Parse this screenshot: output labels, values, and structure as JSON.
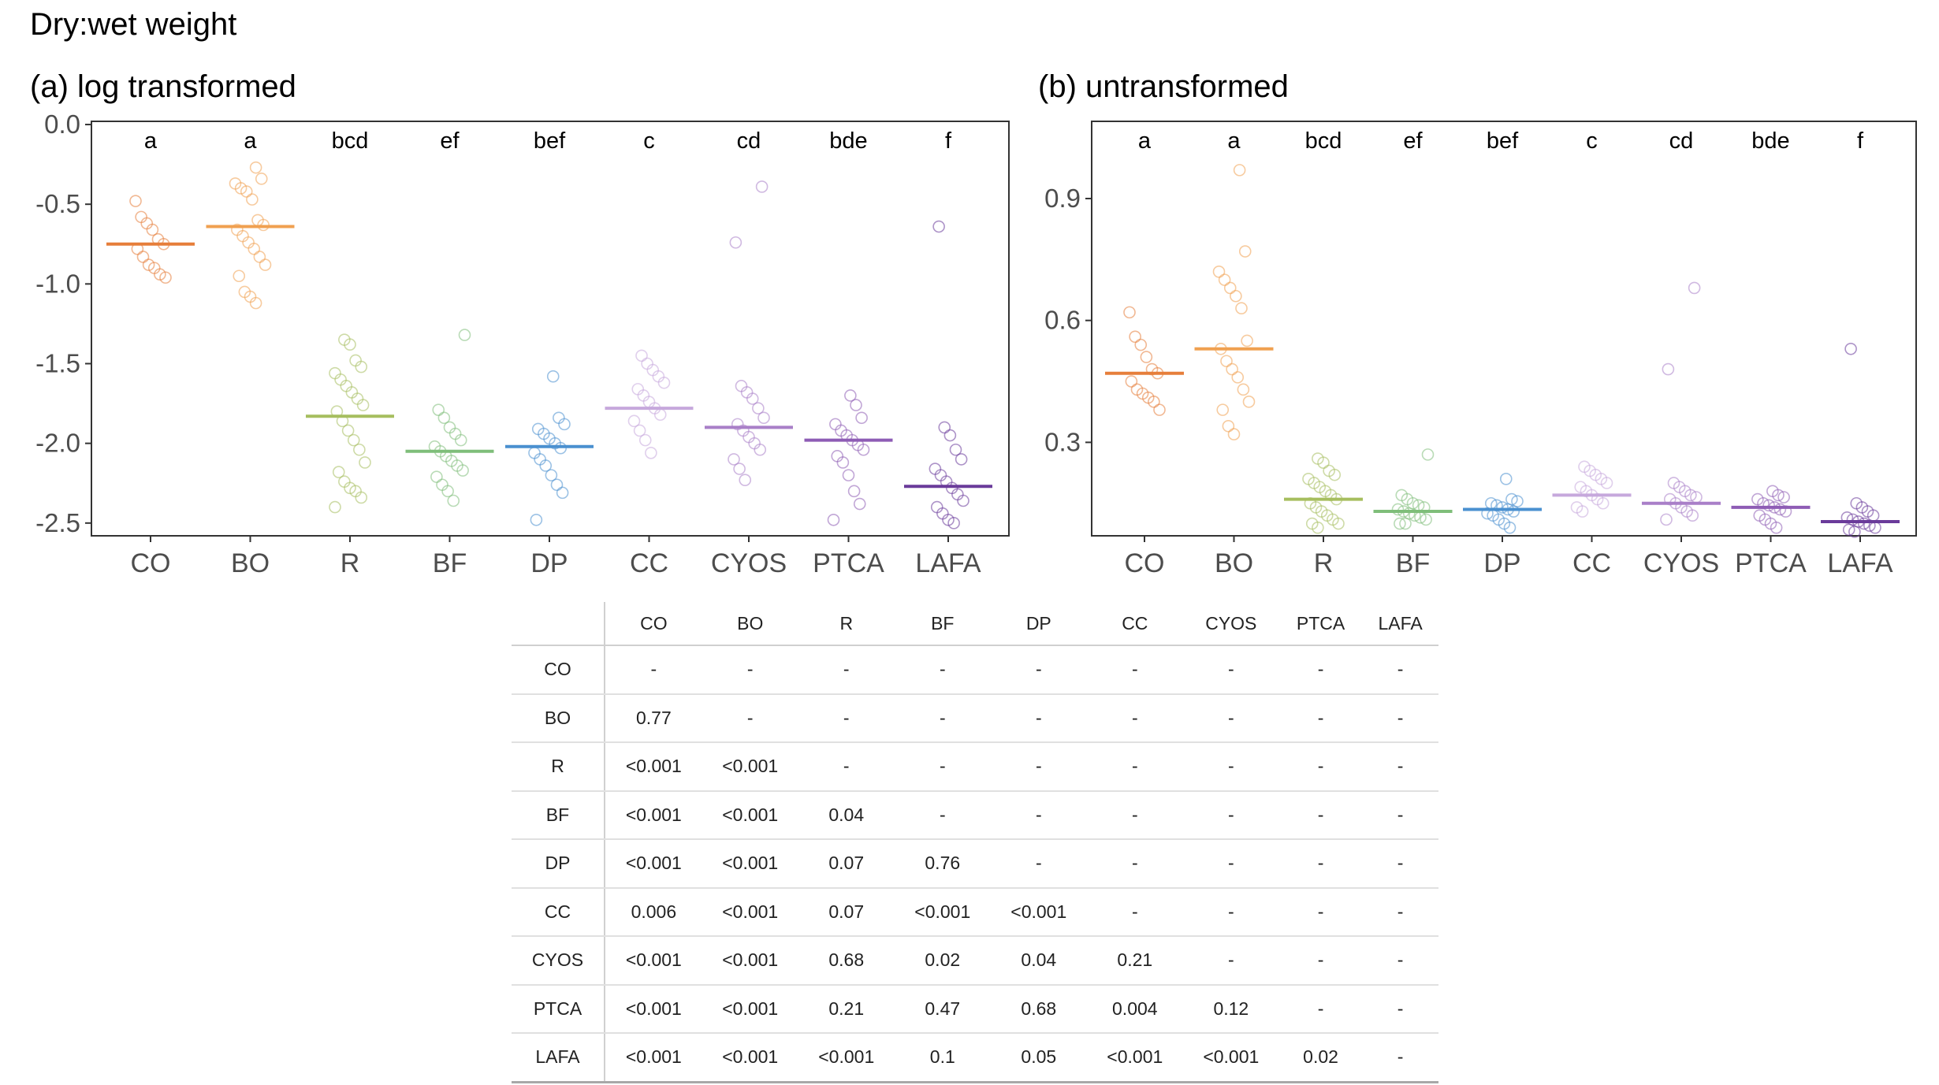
{
  "figure": {
    "title": "Dry:wet weight"
  },
  "pairwise_table": {
    "columns": [
      "CO",
      "BO",
      "R",
      "BF",
      "DP",
      "CC",
      "CYOS",
      "PTCA",
      "LAFA"
    ],
    "rows": [
      {
        "label": "CO",
        "cells": [
          "-",
          "-",
          "-",
          "-",
          "-",
          "-",
          "-",
          "-",
          "-"
        ]
      },
      {
        "label": "BO",
        "cells": [
          "0.77",
          "-",
          "-",
          "-",
          "-",
          "-",
          "-",
          "-",
          "-"
        ]
      },
      {
        "label": "R",
        "cells": [
          "<0.001",
          "<0.001",
          "-",
          "-",
          "-",
          "-",
          "-",
          "-",
          "-"
        ]
      },
      {
        "label": "BF",
        "cells": [
          "<0.001",
          "<0.001",
          "0.04",
          "-",
          "-",
          "-",
          "-",
          "-",
          "-"
        ]
      },
      {
        "label": "DP",
        "cells": [
          "<0.001",
          "<0.001",
          "0.07",
          "0.76",
          "-",
          "-",
          "-",
          "-",
          "-"
        ]
      },
      {
        "label": "CC",
        "cells": [
          "0.006",
          "<0.001",
          "0.07",
          "<0.001",
          "<0.001",
          "-",
          "-",
          "-",
          "-"
        ]
      },
      {
        "label": "CYOS",
        "cells": [
          "<0.001",
          "<0.001",
          "0.68",
          "0.02",
          "0.04",
          "0.21",
          "-",
          "-",
          "-"
        ]
      },
      {
        "label": "PTCA",
        "cells": [
          "<0.001",
          "<0.001",
          "0.21",
          "0.47",
          "0.68",
          "0.004",
          "0.12",
          "-",
          "-"
        ]
      },
      {
        "label": "LAFA",
        "cells": [
          "<0.001",
          "<0.001",
          "<0.001",
          "0.1",
          "0.05",
          "<0.001",
          "<0.001",
          "0.02",
          "-"
        ]
      }
    ]
  },
  "chart_data": [
    {
      "type": "scatter",
      "title": "(a) log transformed",
      "xlabel": "",
      "ylabel": "",
      "ylim": [
        -2.58,
        0.02
      ],
      "yticks": [
        0.0,
        -0.5,
        -1.0,
        -1.5,
        -2.0,
        -2.5
      ],
      "ytick_labels": [
        "0.0",
        "-0.5",
        "-1.0",
        "-1.5",
        "-2.0",
        "-2.5"
      ],
      "grid": false,
      "categories": [
        "CO",
        "BO",
        "R",
        "BF",
        "DP",
        "CC",
        "CYOS",
        "PTCA",
        "LAFA"
      ],
      "group_letters": [
        "a",
        "a",
        "bcd",
        "ef",
        "bef",
        "c",
        "cd",
        "bde",
        "f"
      ],
      "colors": [
        "#e67e3a",
        "#f0a050",
        "#a6be5e",
        "#7fbe7a",
        "#4a90d0",
        "#c6a8dc",
        "#a97fc8",
        "#8e5cb5",
        "#6a3b9a"
      ],
      "means": [
        -0.75,
        -0.64,
        -1.83,
        -2.05,
        -2.02,
        -1.78,
        -1.9,
        -1.98,
        -2.27
      ],
      "points": [
        [
          -0.48,
          -0.58,
          -0.62,
          -0.66,
          -0.72,
          -0.75,
          -0.78,
          -0.83,
          -0.88,
          -0.9,
          -0.94,
          -0.96
        ],
        [
          -0.27,
          -0.34,
          -0.37,
          -0.4,
          -0.42,
          -0.47,
          -0.6,
          -0.63,
          -0.66,
          -0.7,
          -0.74,
          -0.78,
          -0.83,
          -0.88,
          -0.95,
          -1.05,
          -1.08,
          -1.12
        ],
        [
          -1.35,
          -1.38,
          -1.48,
          -1.52,
          -1.56,
          -1.6,
          -1.64,
          -1.68,
          -1.72,
          -1.76,
          -1.8,
          -1.86,
          -1.92,
          -1.98,
          -2.04,
          -2.12,
          -2.18,
          -2.24,
          -2.28,
          -2.3,
          -2.34,
          -2.4
        ],
        [
          -1.32,
          -1.79,
          -1.84,
          -1.9,
          -1.94,
          -1.98,
          -2.02,
          -2.05,
          -2.08,
          -2.11,
          -2.14,
          -2.17,
          -2.21,
          -2.26,
          -2.3,
          -2.36
        ],
        [
          -1.58,
          -1.84,
          -1.88,
          -1.91,
          -1.94,
          -1.97,
          -2.0,
          -2.03,
          -2.06,
          -2.1,
          -2.14,
          -2.2,
          -2.26,
          -2.31,
          -2.48
        ],
        [
          -1.45,
          -1.5,
          -1.54,
          -1.58,
          -1.62,
          -1.66,
          -1.7,
          -1.74,
          -1.78,
          -1.82,
          -1.86,
          -1.92,
          -1.98,
          -2.06
        ],
        [
          -0.39,
          -0.74,
          -1.64,
          -1.68,
          -1.72,
          -1.78,
          -1.84,
          -1.88,
          -1.92,
          -1.96,
          -2.0,
          -2.04,
          -2.1,
          -2.16,
          -2.23
        ],
        [
          -1.7,
          -1.76,
          -1.84,
          -1.88,
          -1.92,
          -1.95,
          -1.98,
          -2.01,
          -2.04,
          -2.08,
          -2.12,
          -2.2,
          -2.3,
          -2.38,
          -2.48
        ],
        [
          -0.64,
          -1.9,
          -1.95,
          -2.04,
          -2.1,
          -2.16,
          -2.2,
          -2.24,
          -2.28,
          -2.32,
          -2.36,
          -2.4,
          -2.44,
          -2.48,
          -2.5
        ]
      ]
    },
    {
      "type": "scatter",
      "title": "(b) untransformed",
      "xlabel": "",
      "ylabel": "",
      "ylim": [
        0.07,
        1.09
      ],
      "yticks": [
        0.9,
        0.6,
        0.3
      ],
      "ytick_labels": [
        "0.9",
        "0.6",
        "0.3"
      ],
      "grid": false,
      "categories": [
        "CO",
        "BO",
        "R",
        "BF",
        "DP",
        "CC",
        "CYOS",
        "PTCA",
        "LAFA"
      ],
      "group_letters": [
        "a",
        "a",
        "bcd",
        "ef",
        "bef",
        "c",
        "cd",
        "bde",
        "f"
      ],
      "colors": [
        "#e67e3a",
        "#f0a050",
        "#a6be5e",
        "#7fbe7a",
        "#4a90d0",
        "#c6a8dc",
        "#a97fc8",
        "#8e5cb5",
        "#6a3b9a"
      ],
      "means": [
        0.47,
        0.53,
        0.16,
        0.13,
        0.135,
        0.17,
        0.15,
        0.14,
        0.105
      ],
      "points": [
        [
          0.62,
          0.56,
          0.54,
          0.51,
          0.48,
          0.47,
          0.45,
          0.43,
          0.42,
          0.41,
          0.4,
          0.38
        ],
        [
          0.97,
          0.77,
          0.72,
          0.7,
          0.68,
          0.66,
          0.63,
          0.55,
          0.53,
          0.5,
          0.48,
          0.46,
          0.43,
          0.4,
          0.38,
          0.34,
          0.32
        ],
        [
          0.26,
          0.25,
          0.23,
          0.22,
          0.21,
          0.2,
          0.19,
          0.18,
          0.17,
          0.16,
          0.15,
          0.14,
          0.13,
          0.12,
          0.11,
          0.1,
          0.1,
          0.09
        ],
        [
          0.27,
          0.17,
          0.16,
          0.15,
          0.145,
          0.14,
          0.135,
          0.13,
          0.125,
          0.12,
          0.115,
          0.11,
          0.1,
          0.1
        ],
        [
          0.21,
          0.16,
          0.155,
          0.15,
          0.145,
          0.14,
          0.135,
          0.13,
          0.125,
          0.12,
          0.11,
          0.1,
          0.09
        ],
        [
          0.24,
          0.23,
          0.22,
          0.21,
          0.2,
          0.19,
          0.18,
          0.17,
          0.16,
          0.15,
          0.14,
          0.13
        ],
        [
          0.68,
          0.48,
          0.2,
          0.19,
          0.18,
          0.17,
          0.165,
          0.16,
          0.15,
          0.14,
          0.13,
          0.12,
          0.11
        ],
        [
          0.18,
          0.17,
          0.165,
          0.16,
          0.15,
          0.145,
          0.14,
          0.135,
          0.13,
          0.12,
          0.11,
          0.1,
          0.09
        ],
        [
          0.53,
          0.15,
          0.14,
          0.13,
          0.12,
          0.115,
          0.11,
          0.105,
          0.1,
          0.095,
          0.09,
          0.085,
          0.08
        ]
      ]
    }
  ]
}
